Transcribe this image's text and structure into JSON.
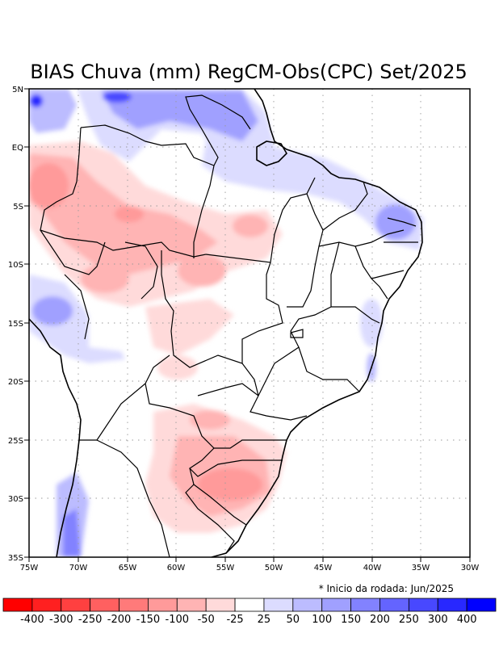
{
  "title": "BIAS Chuva (mm) RegCM-Obs(CPC) Set/2025",
  "footnote": "* Inicio da rodada: Jun/2025",
  "x_ticks": [
    "75W",
    "70W",
    "65W",
    "60W",
    "55W",
    "50W",
    "45W",
    "40W",
    "35W",
    "30W"
  ],
  "y_ticks": [
    "5N",
    "EQ",
    "5S",
    "10S",
    "15S",
    "20S",
    "25S",
    "30S",
    "35S"
  ],
  "lon_range": [
    -75,
    -30
  ],
  "lat_range": [
    -35,
    5
  ],
  "colorbar": {
    "colors": [
      "#ff0000",
      "#ff2020",
      "#ff4040",
      "#ff6060",
      "#ff7a7a",
      "#ff9a9a",
      "#ffb4b4",
      "#ffdada",
      "#ffffff",
      "#dcdcff",
      "#bcbcff",
      "#a0a0ff",
      "#8282ff",
      "#6464ff",
      "#4848ff",
      "#2828ff",
      "#0000ff"
    ],
    "labels": [
      "-400",
      "-300",
      "-250",
      "-200",
      "-150",
      "-100",
      "-50",
      "-25",
      "25",
      "50",
      "100",
      "150",
      "200",
      "250",
      "300",
      "400"
    ]
  }
}
